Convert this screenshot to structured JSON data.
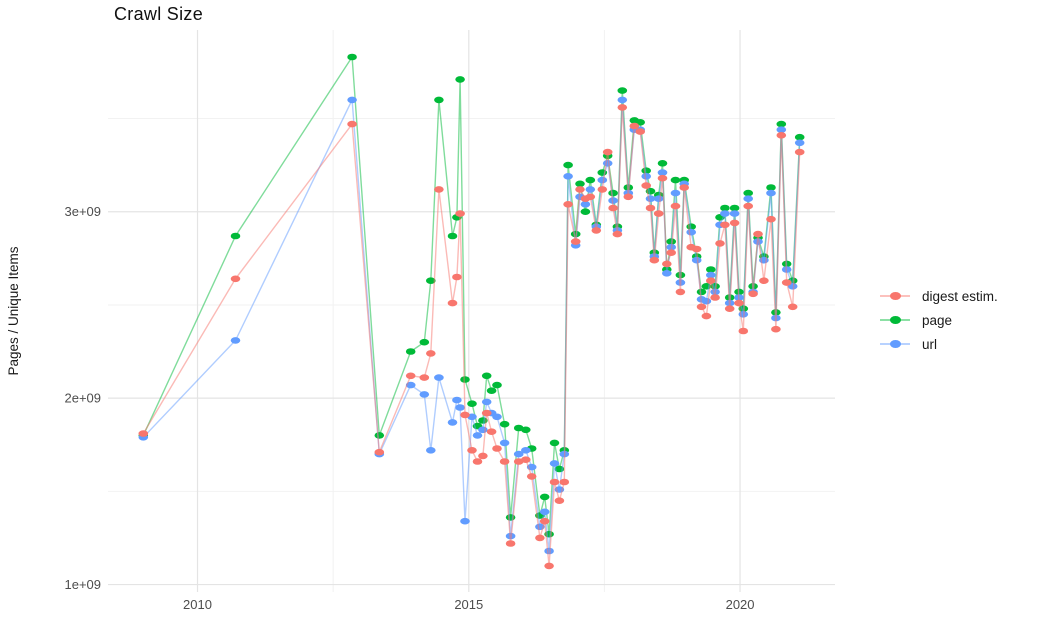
{
  "page": {
    "background_color": "#ffffff"
  },
  "chart_data": {
    "type": "line",
    "title": "Crawl Size",
    "xlabel": "",
    "ylabel": "Pages / Unique Items",
    "values_unit": "1e9 items (billions)",
    "x_unit": "year",
    "xlim": [
      2008.35,
      2021.75
    ],
    "ylim": [
      0.96,
      3.975
    ],
    "x_ticks_major": [
      2010,
      2015,
      2020
    ],
    "x_tick_labels": [
      "2010",
      "2015",
      "2020"
    ],
    "x_ticks_minor": [
      2012.5,
      2017.5
    ],
    "y_ticks_major": [
      1,
      2,
      3
    ],
    "y_tick_labels": [
      "1e+09",
      "2e+09",
      "3e+09"
    ],
    "y_ticks_minor": [
      1.5,
      2.5,
      3.5
    ],
    "grid": true,
    "legend_position": "right",
    "colors": {
      "digest": "#F8766D",
      "page": "#00BA38",
      "url": "#619CFF",
      "grid_major": "#E4E4E4",
      "grid_minor": "#F2F2F2",
      "axis_text": "#4d4d4d"
    },
    "x": [
      2009.0,
      2010.7,
      2012.85,
      2013.35,
      2013.93,
      2014.18,
      2014.3,
      2014.45,
      2014.7,
      2014.78,
      2014.84,
      2014.93,
      2015.06,
      2015.16,
      2015.26,
      2015.33,
      2015.42,
      2015.52,
      2015.66,
      2015.77,
      2015.92,
      2016.05,
      2016.16,
      2016.31,
      2016.4,
      2016.48,
      2016.58,
      2016.67,
      2016.76,
      2016.83,
      2016.97,
      2017.05,
      2017.15,
      2017.24,
      2017.35,
      2017.46,
      2017.56,
      2017.66,
      2017.74,
      2017.83,
      2017.94,
      2018.05,
      2018.16,
      2018.27,
      2018.35,
      2018.42,
      2018.5,
      2018.57,
      2018.65,
      2018.73,
      2018.81,
      2018.9,
      2018.97,
      2019.1,
      2019.2,
      2019.29,
      2019.38,
      2019.46,
      2019.54,
      2019.63,
      2019.72,
      2019.81,
      2019.9,
      2019.98,
      2020.06,
      2020.15,
      2020.24,
      2020.33,
      2020.44,
      2020.57,
      2020.66,
      2020.76,
      2020.86,
      2020.97,
      2021.1
    ],
    "series": [
      {
        "name": "digest estim.",
        "color": "#F8766D",
        "values": [
          1.81,
          2.64,
          3.47,
          1.71,
          2.12,
          2.11,
          2.24,
          3.12,
          2.51,
          2.65,
          2.99,
          1.91,
          1.72,
          1.66,
          1.69,
          1.92,
          1.82,
          1.73,
          1.66,
          1.22,
          1.66,
          1.67,
          1.58,
          1.25,
          1.34,
          1.1,
          1.55,
          1.45,
          1.55,
          3.04,
          2.84,
          3.12,
          3.07,
          3.08,
          2.9,
          3.12,
          3.32,
          3.02,
          2.88,
          3.56,
          3.08,
          3.46,
          3.43,
          3.14,
          3.02,
          2.74,
          2.99,
          3.18,
          2.72,
          2.78,
          3.03,
          2.57,
          3.13,
          2.81,
          2.8,
          2.49,
          2.44,
          2.63,
          2.54,
          2.83,
          2.93,
          2.48,
          2.94,
          2.51,
          2.36,
          3.03,
          2.56,
          2.88,
          2.63,
          2.96,
          2.37,
          3.41,
          2.62,
          2.49,
          3.32
        ]
      },
      {
        "name": "page",
        "color": "#00BA38",
        "values": [
          1.8,
          2.87,
          3.83,
          1.8,
          2.25,
          2.3,
          2.63,
          3.6,
          2.87,
          2.97,
          3.71,
          2.1,
          1.97,
          1.85,
          1.88,
          2.12,
          2.04,
          2.07,
          1.86,
          1.36,
          1.84,
          1.83,
          1.73,
          1.37,
          1.47,
          1.27,
          1.76,
          1.62,
          1.72,
          3.25,
          2.88,
          3.15,
          3.0,
          3.17,
          2.93,
          3.21,
          3.3,
          3.1,
          2.92,
          3.65,
          3.13,
          3.49,
          3.48,
          3.22,
          3.11,
          2.78,
          3.09,
          3.26,
          2.69,
          2.84,
          3.17,
          2.66,
          3.17,
          2.92,
          2.76,
          2.57,
          2.6,
          2.69,
          2.6,
          2.97,
          3.02,
          2.54,
          3.02,
          2.57,
          2.48,
          3.1,
          2.6,
          2.86,
          2.76,
          3.13,
          2.46,
          3.47,
          2.72,
          2.63,
          3.4
        ]
      },
      {
        "name": "url",
        "color": "#619CFF",
        "values": [
          1.79,
          2.31,
          3.6,
          1.7,
          2.07,
          2.02,
          1.72,
          2.11,
          1.87,
          1.99,
          1.95,
          1.34,
          1.9,
          1.8,
          1.83,
          1.98,
          1.92,
          1.9,
          1.76,
          1.26,
          1.7,
          1.72,
          1.63,
          1.31,
          1.39,
          1.18,
          1.65,
          1.51,
          1.7,
          3.19,
          2.82,
          3.08,
          3.04,
          3.12,
          2.92,
          3.17,
          3.26,
          3.06,
          2.9,
          3.6,
          3.1,
          3.44,
          3.44,
          3.19,
          3.07,
          2.76,
          3.07,
          3.21,
          2.67,
          2.81,
          3.1,
          2.62,
          3.15,
          2.89,
          2.74,
          2.53,
          2.52,
          2.66,
          2.57,
          2.93,
          2.99,
          2.51,
          2.99,
          2.54,
          2.45,
          3.07,
          2.57,
          2.84,
          2.74,
          3.1,
          2.43,
          3.44,
          2.69,
          2.6,
          3.37
        ]
      }
    ]
  }
}
